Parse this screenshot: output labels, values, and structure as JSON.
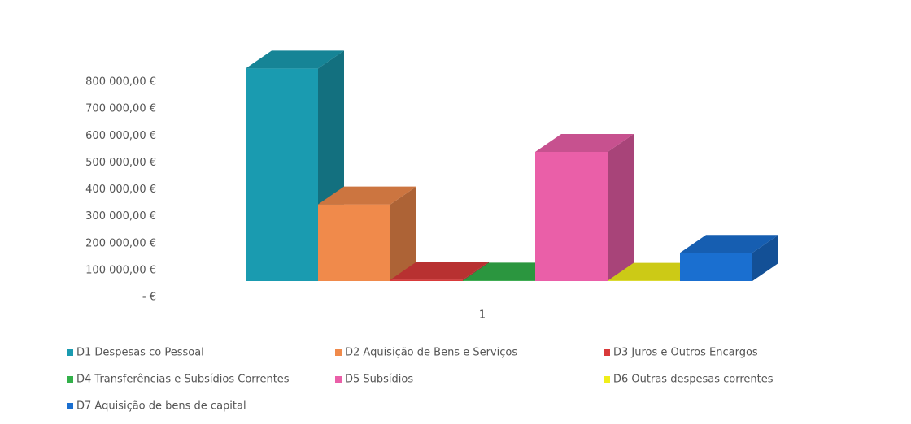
{
  "chart_data": {
    "type": "bar3d",
    "categories": [
      "1"
    ],
    "series": [
      {
        "name": "D1 Despesas co Pessoal",
        "color": "#1a9bb0",
        "values": [
          790000
        ]
      },
      {
        "name": "D2 Aquisição de Bens e Serviços",
        "color": "#f08a4b",
        "values": [
          285000
        ]
      },
      {
        "name": "D3 Juros e Outros Encargos",
        "color": "#d93a3a",
        "values": [
          5000
        ]
      },
      {
        "name": "D4 Transferências e Subsídios Correntes",
        "color": "#33b04a",
        "values": [
          2000
        ]
      },
      {
        "name": "D5 Subsídios",
        "color": "#ea5fa8",
        "values": [
          480000
        ]
      },
      {
        "name": "D6 Outras despesas correntes",
        "color": "#f0ee1a",
        "values": [
          1000
        ]
      },
      {
        "name": "D7 Aquisição de bens de capital",
        "color": "#1a6fd0",
        "values": [
          105000
        ]
      }
    ],
    "ylim": [
      0,
      800000
    ],
    "yticks": [
      {
        "value": 0,
        "label": "-  €"
      },
      {
        "value": 100000,
        "label": "100 000,00 €"
      },
      {
        "value": 200000,
        "label": "200 000,00 €"
      },
      {
        "value": 300000,
        "label": "300 000,00 €"
      },
      {
        "value": 400000,
        "label": "400 000,00 €"
      },
      {
        "value": 500000,
        "label": "500 000,00 €"
      },
      {
        "value": 600000,
        "label": "600 000,00 €"
      },
      {
        "value": 700000,
        "label": "700 000,00 €"
      },
      {
        "value": 800000,
        "label": "800 000,00 €"
      }
    ],
    "legend": "bottom"
  }
}
